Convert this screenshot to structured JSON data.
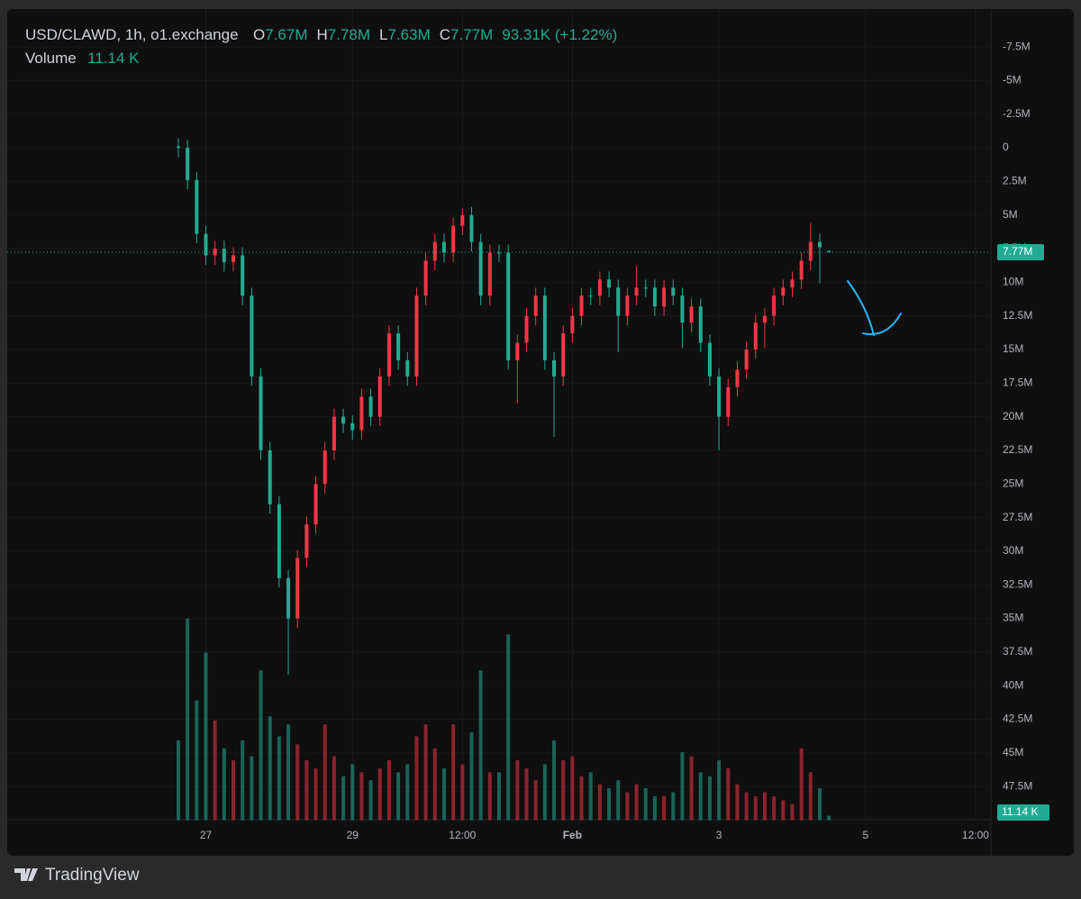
{
  "chart_data": {
    "type": "candlestick",
    "legend": {
      "symbol": "USD/CLAWD, 1h, o1.exchange",
      "items": [
        {
          "key": "O",
          "text": "7.67M"
        },
        {
          "key": "H",
          "text": "7.78M"
        },
        {
          "key": "L",
          "text": "7.63M"
        },
        {
          "key": "C",
          "text": "7.77M"
        }
      ],
      "change": "93.31K (+1.22%)"
    },
    "volume": {
      "name": "Volume",
      "last_label": "11.14 K",
      "ylim": [
        0,
        520
      ],
      "values": [
        200,
        505,
        300,
        420,
        250,
        180,
        150,
        200,
        160,
        375,
        260,
        210,
        240,
        190,
        150,
        130,
        240,
        160,
        110,
        140,
        120,
        100,
        130,
        150,
        120,
        140,
        210,
        240,
        180,
        130,
        240,
        140,
        220,
        375,
        120,
        120,
        465,
        150,
        130,
        100,
        140,
        200,
        150,
        160,
        110,
        120,
        90,
        80,
        100,
        70,
        90,
        80,
        60,
        60,
        70,
        170,
        160,
        120,
        110,
        150,
        130,
        90,
        70,
        60,
        70,
        60,
        50,
        40,
        180,
        120,
        80,
        11.14
      ]
    },
    "x": [
      26.625,
      26.75,
      26.875,
      27,
      27.125,
      27.25,
      27.375,
      27.5,
      27.625,
      27.75,
      27.875,
      28,
      28.125,
      28.25,
      28.375,
      28.5,
      28.625,
      28.75,
      28.875,
      29,
      29.125,
      29.25,
      29.375,
      29.5,
      29.625,
      29.75,
      29.875,
      30,
      30.125,
      30.25,
      30.375,
      30.5,
      30.625,
      30.75,
      30.875,
      31,
      31.125,
      31.25,
      31.375,
      31.5,
      31.625,
      31.75,
      31.875,
      32,
      32.125,
      32.25,
      32.375,
      32.5,
      32.625,
      32.75,
      32.875,
      33,
      33.125,
      33.25,
      33.375,
      33.5,
      33.625,
      33.75,
      33.875,
      34,
      34.125,
      34.25,
      34.375,
      34.5,
      34.625,
      34.75,
      34.875,
      35,
      35.125,
      35.25,
      35.375,
      35.5
    ],
    "open": [
      -0.1,
      0,
      2.4,
      6.4,
      8,
      7.5,
      8.5,
      8,
      11,
      17,
      22.5,
      26.5,
      32,
      35,
      30.5,
      28,
      25,
      22.5,
      20,
      20.5,
      21,
      18.5,
      20,
      17,
      13.8,
      15.8,
      17,
      11,
      8.4,
      7,
      7.8,
      5.8,
      5,
      7,
      11,
      7.8,
      7.8,
      15.8,
      14.5,
      12.5,
      11,
      15.8,
      17,
      13.8,
      12.5,
      11,
      11,
      9.8,
      10.4,
      12.5,
      11,
      10.4,
      10.4,
      11.8,
      10.4,
      11,
      13,
      11.8,
      14.5,
      17,
      20,
      17.8,
      16.5,
      15,
      13,
      12.5,
      11,
      10.4,
      9.8,
      8.4,
      7,
      7.67
    ],
    "high": [
      0.7,
      3.1,
      7.1,
      8.7,
      8.7,
      9.2,
      9.2,
      11.7,
      17.7,
      23.2,
      27.2,
      32.7,
      39.2,
      35.7,
      31.2,
      28.7,
      25.7,
      23.2,
      21.2,
      21.7,
      21.7,
      20.7,
      20.7,
      17.7,
      16.5,
      17.7,
      17.7,
      11.7,
      9.1,
      8.5,
      8.5,
      6.5,
      7.7,
      11.7,
      11.7,
      8.5,
      16.5,
      19,
      15.2,
      13.2,
      16.5,
      21.5,
      17.7,
      14.5,
      13.2,
      11.7,
      11.7,
      11.1,
      15.2,
      13.2,
      11.7,
      11.1,
      12.5,
      12.5,
      11.7,
      14.9,
      13.7,
      15.2,
      17.7,
      22.5,
      20.7,
      18.5,
      17.2,
      15.7,
      14.9,
      13.2,
      11.7,
      11.1,
      10.5,
      9.1,
      10.1,
      7.78
    ],
    "low": [
      -0.7,
      -0.6,
      1.8,
      5.8,
      6.9,
      6.9,
      7.4,
      7.4,
      10.4,
      16.4,
      21.9,
      25.9,
      31.4,
      29.9,
      27.4,
      24.4,
      21.9,
      19.4,
      19.4,
      19.9,
      17.9,
      17.9,
      16.4,
      13.2,
      13.2,
      15.2,
      10.4,
      7.8,
      6.4,
      6.4,
      5.2,
      4.5,
      4.4,
      6.4,
      7.2,
      7.2,
      7.2,
      13.9,
      11.9,
      10.4,
      10.4,
      15.2,
      13.2,
      11.9,
      10.4,
      10.4,
      9.2,
      9.2,
      9.8,
      10.4,
      8.8,
      9.8,
      9.8,
      9.8,
      9.8,
      10.4,
      11.2,
      11.2,
      13.9,
      16.4,
      17.2,
      15.9,
      14.4,
      12.4,
      11.9,
      10.4,
      9.8,
      9.2,
      7.8,
      5.6,
      6.4,
      7.63
    ],
    "close": [
      0,
      2.4,
      6.4,
      8,
      7.5,
      8.5,
      8,
      11,
      17,
      22.5,
      26.5,
      32,
      35,
      30.5,
      28,
      25,
      22.5,
      20,
      20.5,
      21,
      18.5,
      20,
      17,
      13.8,
      15.8,
      17,
      11,
      8.4,
      7,
      7.8,
      5.8,
      5,
      7,
      11,
      7.8,
      7.8,
      15.8,
      14.5,
      12.5,
      11,
      15.8,
      17,
      13.8,
      12.5,
      11,
      11,
      9.8,
      10.4,
      12.5,
      11,
      10.4,
      10.4,
      11.8,
      10.4,
      11,
      13,
      11.8,
      14.5,
      17,
      20,
      17.8,
      16.5,
      15,
      13,
      12.5,
      11,
      10.4,
      9.8,
      8.4,
      7,
      7.4,
      7.77
    ],
    "up_color": "#22ab94",
    "down_color": "#f23645",
    "last_price": {
      "value": 7.77,
      "label": "7.77M"
    },
    "xlim": [
      24.29,
      37.71
    ],
    "xticks": [
      27,
      29,
      {
        "value": 30.5,
        "label": "12:00"
      },
      {
        "value": 32,
        "label": "Feb"
      },
      {
        "value": 34,
        "label": "3"
      },
      {
        "value": 36,
        "label": "5"
      },
      {
        "value": 37.5,
        "label": "12:00"
      }
    ],
    "ylim": [
      50,
      -9.65
    ],
    "yticks": [
      {
        "value": -7.5,
        "label": "-7.5M"
      },
      {
        "value": -5,
        "label": "-5M"
      },
      {
        "value": -2.5,
        "label": "-2.5M"
      },
      0,
      {
        "value": 2.5,
        "label": "2.5M"
      },
      {
        "value": 5,
        "label": "5M"
      },
      {
        "value": 7.5,
        "label": "7.5M"
      },
      {
        "value": 10,
        "label": "10M"
      },
      {
        "value": 12.5,
        "label": "12.5M"
      },
      {
        "value": 15,
        "label": "15M"
      },
      {
        "value": 17.5,
        "label": "17.5M"
      },
      {
        "value": 20,
        "label": "20M"
      },
      {
        "value": 22.5,
        "label": "22.5M"
      },
      {
        "value": 25,
        "label": "25M"
      },
      {
        "value": 27.5,
        "label": "27.5M"
      },
      {
        "value": 30,
        "label": "30M"
      },
      {
        "value": 32.5,
        "label": "32.5M"
      },
      {
        "value": 35,
        "label": "35M"
      },
      {
        "value": 37.5,
        "label": "37.5M"
      },
      {
        "value": 40,
        "label": "40M"
      },
      {
        "value": 42.5,
        "label": "42.5M"
      },
      {
        "value": 45,
        "label": "45M"
      },
      {
        "value": 47.5,
        "label": "47.5M"
      }
    ],
    "grid": true,
    "inverted": true
  },
  "footer": {
    "brand": "TradingView"
  }
}
